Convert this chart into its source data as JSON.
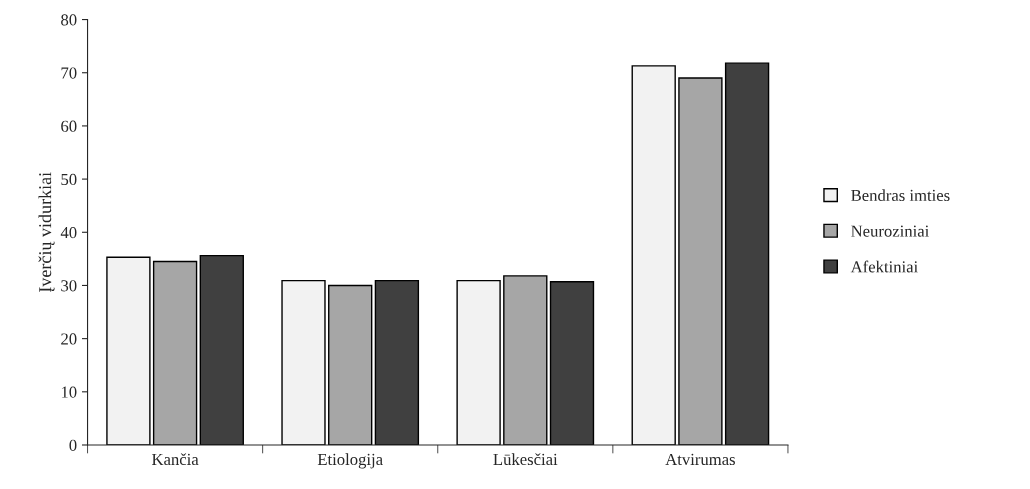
{
  "chart_data": {
    "type": "bar",
    "ylabel": "Įverčių vidurkiai",
    "categories": [
      "Kančia",
      "Etiologija",
      "Lūkesčiai",
      "Atvirumas"
    ],
    "series": [
      {
        "name": "Bendras imties",
        "color": "#f2f2f2",
        "values": [
          35.3,
          30.9,
          30.9,
          71.3
        ]
      },
      {
        "name": "Neuroziniai",
        "color": "#a6a6a6",
        "values": [
          34.5,
          30.0,
          31.8,
          69.0
        ]
      },
      {
        "name": "Afektiniai",
        "color": "#404040",
        "values": [
          35.6,
          30.9,
          30.7,
          71.8
        ]
      }
    ],
    "ylim": [
      0,
      80
    ],
    "yticks": [
      0,
      10,
      20,
      30,
      40,
      50,
      60,
      70,
      80
    ],
    "grid": false,
    "legend": "right"
  }
}
